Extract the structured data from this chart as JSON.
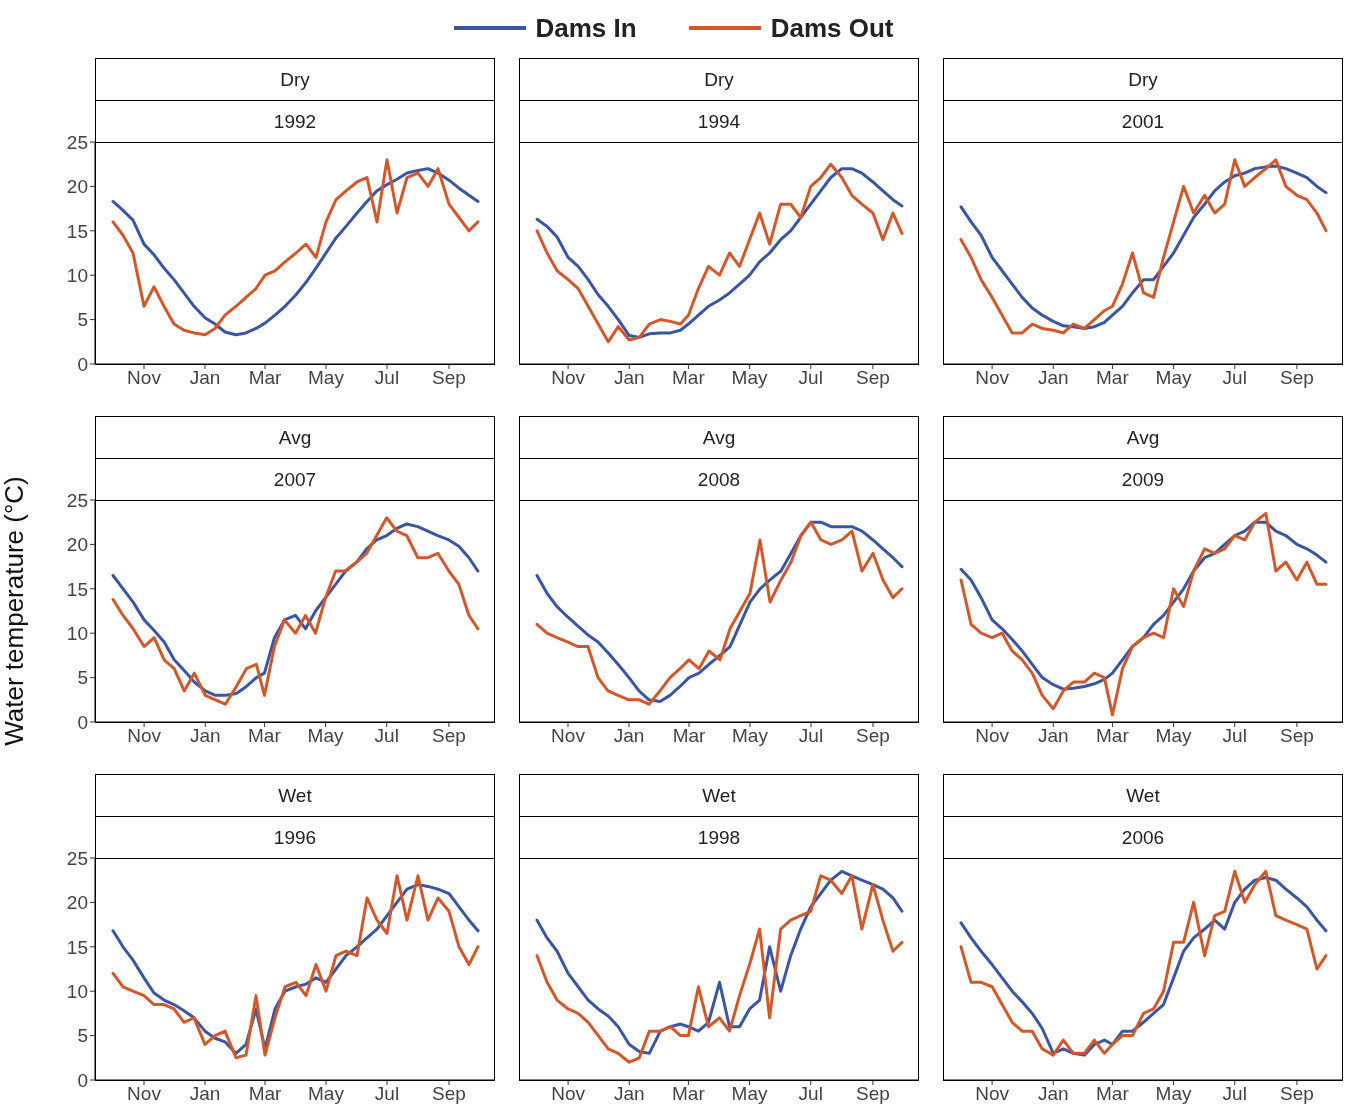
{
  "chart_data": [
    {
      "type": "line",
      "title": "Dry",
      "subtitle": "1992",
      "legend": "top",
      "x": [
        "1991-10-01",
        "1991-10-11",
        "1991-10-21",
        "1991-11-01",
        "1991-11-11",
        "1991-11-21",
        "1991-12-01",
        "1991-12-11",
        "1991-12-21",
        "1992-01-01",
        "1992-01-11",
        "1992-01-21",
        "1992-02-01",
        "1992-02-11",
        "1992-02-21",
        "1992-03-01",
        "1992-03-11",
        "1992-03-21",
        "1992-04-01",
        "1992-04-11",
        "1992-04-21",
        "1992-05-01",
        "1992-05-11",
        "1992-05-21",
        "1992-06-01",
        "1992-06-11",
        "1992-06-21",
        "1992-07-01",
        "1992-07-11",
        "1992-07-21",
        "1992-08-01",
        "1992-08-11",
        "1992-08-21",
        "1992-09-01",
        "1992-09-11",
        "1992-09-21",
        "1992-09-30"
      ],
      "xlim": [
        "1991-09-13",
        "1992-10-17"
      ],
      "xticks": [
        {
          "value": "1991-11-01",
          "label": "Nov"
        },
        {
          "value": "1992-01-01",
          "label": "Jan"
        },
        {
          "value": "1992-03-01",
          "label": "Mar"
        },
        {
          "value": "1992-05-01",
          "label": "May"
        },
        {
          "value": "1992-07-01",
          "label": "Jul"
        },
        {
          "value": "1992-09-01",
          "label": "Sep"
        }
      ],
      "ylim": [
        0,
        25
      ],
      "yticks": [
        0,
        5,
        10,
        15,
        20,
        25
      ],
      "series": [
        {
          "name": "Dams In",
          "color": "#3a55a4",
          "values": [
            18.3,
            17.3,
            16.2,
            13.5,
            12.3,
            10.8,
            9.5,
            8.0,
            6.5,
            5.2,
            4.5,
            3.6,
            3.3,
            3.5,
            4.0,
            4.6,
            5.5,
            6.5,
            7.8,
            9.2,
            10.8,
            12.5,
            14.2,
            15.5,
            17.0,
            18.3,
            19.5,
            20.2,
            20.8,
            21.5,
            21.8,
            22.0,
            21.5,
            20.7,
            19.8,
            19.0,
            18.3
          ]
        },
        {
          "name": "Dams Out",
          "color": "#d4572a",
          "values": [
            16,
            14.5,
            12.5,
            6.5,
            8.7,
            6.5,
            4.5,
            3.8,
            3.5,
            3.3,
            4.0,
            5.5,
            6.5,
            7.5,
            8.5,
            10,
            10.5,
            11.5,
            12.5,
            13.5,
            12.0,
            16.0,
            18.5,
            19.5,
            20.5,
            21.0,
            16.0,
            23.0,
            17.0,
            21.0,
            21.5,
            20.0,
            22.0,
            18.0,
            16.5,
            15.0,
            16.0
          ]
        }
      ]
    },
    {
      "type": "line",
      "title": "Dry",
      "subtitle": "1994",
      "tick_labels": "x",
      "x": [
        "1993-10-01",
        "1993-10-11",
        "1993-10-21",
        "1993-11-01",
        "1993-11-11",
        "1993-11-21",
        "1993-12-01",
        "1993-12-11",
        "1993-12-21",
        "1994-01-01",
        "1994-01-11",
        "1994-01-21",
        "1994-02-01",
        "1994-02-11",
        "1994-02-21",
        "1994-03-01",
        "1994-03-11",
        "1994-03-21",
        "1994-04-01",
        "1994-04-11",
        "1994-04-21",
        "1994-05-01",
        "1994-05-11",
        "1994-05-21",
        "1994-06-01",
        "1994-06-11",
        "1994-06-21",
        "1994-07-01",
        "1994-07-11",
        "1994-07-21",
        "1994-08-01",
        "1994-08-11",
        "1994-08-21",
        "1994-09-01",
        "1994-09-11",
        "1994-09-21",
        "1994-09-30"
      ],
      "xlim": [
        "1993-09-13",
        "1994-10-17"
      ],
      "xticks": [
        {
          "value": "1993-11-01",
          "label": "Nov"
        },
        {
          "value": "1994-01-01",
          "label": "Jan"
        },
        {
          "value": "1994-03-01",
          "label": "Mar"
        },
        {
          "value": "1994-05-01",
          "label": "May"
        },
        {
          "value": "1994-07-01",
          "label": "Jul"
        },
        {
          "value": "1994-09-01",
          "label": "Sep"
        }
      ],
      "ylim": [
        0,
        25
      ],
      "yticks": [
        0,
        5,
        10,
        15,
        20,
        25
      ],
      "series": [
        {
          "name": "Dams In",
          "color": "#3a55a4",
          "values": [
            16.3,
            15.5,
            14.3,
            12.0,
            11.0,
            9.5,
            7.8,
            6.5,
            5.0,
            3.2,
            3.0,
            3.4,
            3.5,
            3.5,
            3.8,
            4.5,
            5.5,
            6.5,
            7.2,
            8.0,
            9.0,
            10.0,
            11.5,
            12.5,
            14.0,
            15.0,
            16.5,
            18.0,
            19.5,
            21.0,
            22.0,
            22.0,
            21.5,
            20.5,
            19.5,
            18.5,
            17.8
          ]
        },
        {
          "name": "Dams Out",
          "color": "#d4572a",
          "values": [
            15,
            12.5,
            10.5,
            9.5,
            8.5,
            6.5,
            4.5,
            2.5,
            4.2,
            2.7,
            3.0,
            4.5,
            5.0,
            4.8,
            4.5,
            5.5,
            8.5,
            11.0,
            10.0,
            12.5,
            11.0,
            14.0,
            17.0,
            13.5,
            18.0,
            18.0,
            16.5,
            20.0,
            21.0,
            22.5,
            21.0,
            19.0,
            18.0,
            17.0,
            14.0,
            17.0,
            14.7
          ]
        }
      ]
    },
    {
      "type": "line",
      "title": "Dry",
      "subtitle": "2001",
      "tick_labels": "x",
      "x": [
        "2000-10-01",
        "2000-10-11",
        "2000-10-21",
        "2000-11-01",
        "2000-11-11",
        "2000-11-21",
        "2000-12-01",
        "2000-12-11",
        "2000-12-21",
        "2001-01-01",
        "2001-01-11",
        "2001-01-21",
        "2001-02-01",
        "2001-02-11",
        "2001-02-21",
        "2001-03-01",
        "2001-03-11",
        "2001-03-21",
        "2001-04-01",
        "2001-04-11",
        "2001-04-21",
        "2001-05-01",
        "2001-05-11",
        "2001-05-21",
        "2001-06-01",
        "2001-06-11",
        "2001-06-21",
        "2001-07-01",
        "2001-07-11",
        "2001-07-21",
        "2001-08-01",
        "2001-08-11",
        "2001-08-21",
        "2001-09-01",
        "2001-09-11",
        "2001-09-21",
        "2001-09-30"
      ],
      "xlim": [
        "2000-09-13",
        "2001-10-17"
      ],
      "xticks": [
        {
          "value": "2000-11-01",
          "label": "Nov"
        },
        {
          "value": "2001-01-01",
          "label": "Jan"
        },
        {
          "value": "2001-03-01",
          "label": "Mar"
        },
        {
          "value": "2001-05-01",
          "label": "May"
        },
        {
          "value": "2001-07-01",
          "label": "Jul"
        },
        {
          "value": "2001-09-01",
          "label": "Sep"
        }
      ],
      "ylim": [
        0,
        25
      ],
      "yticks": [
        0,
        5,
        10,
        15,
        20,
        25
      ],
      "series": [
        {
          "name": "Dams In",
          "color": "#3a55a4",
          "values": [
            17.7,
            16,
            14.5,
            12.0,
            10.5,
            9.0,
            7.5,
            6.3,
            5.5,
            4.8,
            4.3,
            4.2,
            4.0,
            4.2,
            4.7,
            5.5,
            6.5,
            8.0,
            9.5,
            9.5,
            11.0,
            12.5,
            14.5,
            16.5,
            18.0,
            19.5,
            20.5,
            21.2,
            21.5,
            22.0,
            22.2,
            22.3,
            22.0,
            21.5,
            21.0,
            20.0,
            19.3
          ]
        },
        {
          "name": "Dams Out",
          "color": "#d4572a",
          "values": [
            14.0,
            12.0,
            9.5,
            7.5,
            5.5,
            3.5,
            3.5,
            4.5,
            4.0,
            3.8,
            3.5,
            4.5,
            4.0,
            5.0,
            6.0,
            6.5,
            9.0,
            12.5,
            8.0,
            7.5,
            12.0,
            16.0,
            20.0,
            17.0,
            19.0,
            17.0,
            18.0,
            23.0,
            20.0,
            21.0,
            22.0,
            23.0,
            20.0,
            19.0,
            18.5,
            17.0,
            15.0
          ]
        }
      ]
    },
    {
      "type": "line",
      "title": "Avg",
      "subtitle": "2007",
      "ylabel": "Water temperature (°C)",
      "x": [
        "2006-10-01",
        "2006-10-11",
        "2006-10-21",
        "2006-11-01",
        "2006-11-11",
        "2006-11-21",
        "2006-12-01",
        "2006-12-11",
        "2006-12-21",
        "2007-01-01",
        "2007-01-11",
        "2007-01-21",
        "2007-02-01",
        "2007-02-11",
        "2007-02-21",
        "2007-03-01",
        "2007-03-11",
        "2007-03-21",
        "2007-04-01",
        "2007-04-11",
        "2007-04-21",
        "2007-05-01",
        "2007-05-11",
        "2007-05-21",
        "2007-06-01",
        "2007-06-11",
        "2007-06-21",
        "2007-07-01",
        "2007-07-11",
        "2007-07-21",
        "2007-08-01",
        "2007-08-11",
        "2007-08-21",
        "2007-09-01",
        "2007-09-11",
        "2007-09-21",
        "2007-09-30"
      ],
      "xlim": [
        "2006-09-13",
        "2007-10-17"
      ],
      "xticks": [
        {
          "value": "2006-11-01",
          "label": "Nov"
        },
        {
          "value": "2007-01-01",
          "label": "Jan"
        },
        {
          "value": "2007-03-01",
          "label": "Mar"
        },
        {
          "value": "2007-05-01",
          "label": "May"
        },
        {
          "value": "2007-07-01",
          "label": "Jul"
        },
        {
          "value": "2007-09-01",
          "label": "Sep"
        }
      ],
      "ylim": [
        0,
        25
      ],
      "yticks": [
        0,
        5,
        10,
        15,
        20,
        25
      ],
      "series": [
        {
          "name": "Dams In",
          "color": "#3a55a4",
          "values": [
            16.5,
            15,
            13.5,
            11.5,
            10.3,
            9.0,
            7.0,
            5.8,
            4.5,
            3.5,
            3.0,
            3.0,
            3.2,
            4.0,
            5.0,
            5.5,
            9.5,
            11.5,
            12.0,
            10.5,
            12.5,
            14.0,
            15.5,
            17.0,
            18.0,
            19.5,
            20.5,
            21.0,
            21.8,
            22.3,
            22.0,
            21.5,
            21.0,
            20.5,
            19.8,
            18.5,
            17.0
          ]
        },
        {
          "name": "Dams Out",
          "color": "#d4572a",
          "values": [
            13.8,
            12,
            10.5,
            8.5,
            9.5,
            7.0,
            6.0,
            3.5,
            5.5,
            3.0,
            2.5,
            2.0,
            4.0,
            6.0,
            6.5,
            3.0,
            8.5,
            11.5,
            10.0,
            12.0,
            10.0,
            14.0,
            17.0,
            17.0,
            18.0,
            19.0,
            21.0,
            23.0,
            21.5,
            21.0,
            18.5,
            18.5,
            19.0,
            17.0,
            15.5,
            12.0,
            10.5
          ]
        }
      ]
    },
    {
      "type": "line",
      "title": "Avg",
      "subtitle": "2008",
      "tick_labels": "x",
      "x": [
        "2007-10-01",
        "2007-10-11",
        "2007-10-21",
        "2007-11-01",
        "2007-11-11",
        "2007-11-21",
        "2007-12-01",
        "2007-12-11",
        "2007-12-21",
        "2008-01-01",
        "2008-01-11",
        "2008-01-21",
        "2008-02-01",
        "2008-02-11",
        "2008-02-21",
        "2008-03-01",
        "2008-03-11",
        "2008-03-21",
        "2008-04-01",
        "2008-04-11",
        "2008-04-21",
        "2008-05-01",
        "2008-05-11",
        "2008-05-21",
        "2008-06-01",
        "2008-06-11",
        "2008-06-21",
        "2008-07-01",
        "2008-07-11",
        "2008-07-21",
        "2008-08-01",
        "2008-08-11",
        "2008-08-21",
        "2008-09-01",
        "2008-09-11",
        "2008-09-21",
        "2008-09-30"
      ],
      "xlim": [
        "2007-09-13",
        "2008-10-17"
      ],
      "xticks": [
        {
          "value": "2007-11-01",
          "label": "Nov"
        },
        {
          "value": "2008-01-01",
          "label": "Jan"
        },
        {
          "value": "2008-03-01",
          "label": "Mar"
        },
        {
          "value": "2008-05-01",
          "label": "May"
        },
        {
          "value": "2008-07-01",
          "label": "Jul"
        },
        {
          "value": "2008-09-01",
          "label": "Sep"
        }
      ],
      "ylim": [
        0,
        25
      ],
      "yticks": [
        0,
        5,
        10,
        15,
        20,
        25
      ],
      "series": [
        {
          "name": "Dams In",
          "color": "#3a55a4",
          "values": [
            16.5,
            14.5,
            13.0,
            11.8,
            10.8,
            9.8,
            9.0,
            7.8,
            6.5,
            5.0,
            3.5,
            2.5,
            2.3,
            3.0,
            4.0,
            5.0,
            5.5,
            6.5,
            7.5,
            8.5,
            11.0,
            13.5,
            15.0,
            16.0,
            17.0,
            19.0,
            21.0,
            22.5,
            22.5,
            22.0,
            22.0,
            22.0,
            21.5,
            20.5,
            19.5,
            18.5,
            17.5
          ]
        },
        {
          "name": "Dams Out",
          "color": "#d4572a",
          "values": [
            11.0,
            10.0,
            9.5,
            9.0,
            8.5,
            8.5,
            5.0,
            3.5,
            3.0,
            2.5,
            2.5,
            2.0,
            3.5,
            5.0,
            6.0,
            7.0,
            6.0,
            8.0,
            7.0,
            10.5,
            12.5,
            14.5,
            20.5,
            13.5,
            16.0,
            18.0,
            21.0,
            22.5,
            20.5,
            20.0,
            20.5,
            21.5,
            17.0,
            19.0,
            16.0,
            14.0,
            15.0
          ]
        }
      ]
    },
    {
      "type": "line",
      "title": "Avg",
      "subtitle": "2009",
      "tick_labels": "x",
      "x": [
        "2008-10-01",
        "2008-10-11",
        "2008-10-21",
        "2008-11-01",
        "2008-11-11",
        "2008-11-21",
        "2008-12-01",
        "2008-12-11",
        "2008-12-21",
        "2009-01-01",
        "2009-01-11",
        "2009-01-21",
        "2009-02-01",
        "2009-02-11",
        "2009-02-21",
        "2009-03-01",
        "2009-03-11",
        "2009-03-21",
        "2009-04-01",
        "2009-04-11",
        "2009-04-21",
        "2009-05-01",
        "2009-05-11",
        "2009-05-21",
        "2009-06-01",
        "2009-06-11",
        "2009-06-21",
        "2009-07-01",
        "2009-07-11",
        "2009-07-21",
        "2009-08-01",
        "2009-08-11",
        "2009-08-21",
        "2009-09-01",
        "2009-09-11",
        "2009-09-21",
        "2009-09-30"
      ],
      "xlim": [
        "2008-09-13",
        "2009-10-17"
      ],
      "xticks": [
        {
          "value": "2008-11-01",
          "label": "Nov"
        },
        {
          "value": "2009-01-01",
          "label": "Jan"
        },
        {
          "value": "2009-03-01",
          "label": "Mar"
        },
        {
          "value": "2009-05-01",
          "label": "May"
        },
        {
          "value": "2009-07-01",
          "label": "Jul"
        },
        {
          "value": "2009-09-01",
          "label": "Sep"
        }
      ],
      "ylim": [
        0,
        25
      ],
      "yticks": [
        0,
        5,
        10,
        15,
        20,
        25
      ],
      "series": [
        {
          "name": "Dams In",
          "color": "#3a55a4",
          "values": [
            17.2,
            16.0,
            14.0,
            11.5,
            10.5,
            9.3,
            8.0,
            6.5,
            5.0,
            4.2,
            3.7,
            3.8,
            4.0,
            4.3,
            4.8,
            5.5,
            7.0,
            8.5,
            9.5,
            11.0,
            12.0,
            13.5,
            15.0,
            17.0,
            18.5,
            19.0,
            20.0,
            21.0,
            21.5,
            22.5,
            22.5,
            21.5,
            21.0,
            20.0,
            19.5,
            18.8,
            18.0
          ]
        },
        {
          "name": "Dams Out",
          "color": "#d4572a",
          "values": [
            16.0,
            11.0,
            10.0,
            9.5,
            10.0,
            8.0,
            7.0,
            5.5,
            3.0,
            1.5,
            3.5,
            4.5,
            4.5,
            5.5,
            5.0,
            0.8,
            6.0,
            8.5,
            9.5,
            10.0,
            9.5,
            15.0,
            13.0,
            17.0,
            19.5,
            19.0,
            19.5,
            21.0,
            20.5,
            22.5,
            23.5,
            17.0,
            18.0,
            16.0,
            18.0,
            15.5,
            15.5
          ]
        }
      ]
    },
    {
      "type": "line",
      "title": "Wet",
      "subtitle": "1996",
      "x": [
        "1995-10-01",
        "1995-10-11",
        "1995-10-21",
        "1995-11-01",
        "1995-11-11",
        "1995-11-21",
        "1995-12-01",
        "1995-12-11",
        "1995-12-21",
        "1996-01-01",
        "1996-01-11",
        "1996-01-21",
        "1996-02-01",
        "1996-02-11",
        "1996-02-21",
        "1996-03-01",
        "1996-03-11",
        "1996-03-21",
        "1996-04-01",
        "1996-04-11",
        "1996-04-21",
        "1996-05-01",
        "1996-05-11",
        "1996-05-21",
        "1996-06-01",
        "1996-06-11",
        "1996-06-21",
        "1996-07-01",
        "1996-07-11",
        "1996-07-21",
        "1996-08-01",
        "1996-08-11",
        "1996-08-21",
        "1996-09-01",
        "1996-09-11",
        "1996-09-21",
        "1996-09-30"
      ],
      "xlim": [
        "1995-09-13",
        "1996-10-17"
      ],
      "xticks": [
        {
          "value": "1995-11-01",
          "label": "Nov"
        },
        {
          "value": "1996-01-01",
          "label": "Jan"
        },
        {
          "value": "1996-03-01",
          "label": "Mar"
        },
        {
          "value": "1996-05-01",
          "label": "May"
        },
        {
          "value": "1996-07-01",
          "label": "Jul"
        },
        {
          "value": "1996-09-01",
          "label": "Sep"
        }
      ],
      "ylim": [
        0,
        25
      ],
      "yticks": [
        0,
        5,
        10,
        15,
        20,
        25
      ],
      "series": [
        {
          "name": "Dams In",
          "color": "#3a55a4",
          "values": [
            16.8,
            15.0,
            13.5,
            11.5,
            9.8,
            9.0,
            8.5,
            7.8,
            7.0,
            5.5,
            4.7,
            4.3,
            3.0,
            4.0,
            8.0,
            3.5,
            8.0,
            10.0,
            10.5,
            10.8,
            11.5,
            11.0,
            12.5,
            14.0,
            15.0,
            16.0,
            17.0,
            18.5,
            20.0,
            21.5,
            22.0,
            21.8,
            21.5,
            21.0,
            19.5,
            18.0,
            16.8
          ]
        },
        {
          "name": "Dams Out",
          "color": "#d4572a",
          "values": [
            12.0,
            10.5,
            10.0,
            9.5,
            8.5,
            8.5,
            8.0,
            6.5,
            7.0,
            4.0,
            5.0,
            5.5,
            2.5,
            2.8,
            9.5,
            2.8,
            7.0,
            10.5,
            11.0,
            9.5,
            13.0,
            10.0,
            14.0,
            14.5,
            14.0,
            20.5,
            18.0,
            16.5,
            23.0,
            18.0,
            23.0,
            18.0,
            20.5,
            19.0,
            15.0,
            13.0,
            15.0
          ]
        }
      ]
    },
    {
      "type": "line",
      "title": "Wet",
      "subtitle": "1998",
      "tick_labels": "x",
      "x": [
        "1997-10-01",
        "1997-10-11",
        "1997-10-21",
        "1997-11-01",
        "1997-11-11",
        "1997-11-21",
        "1997-12-01",
        "1997-12-11",
        "1997-12-21",
        "1998-01-01",
        "1998-01-11",
        "1998-01-21",
        "1998-02-01",
        "1998-02-11",
        "1998-02-21",
        "1998-03-01",
        "1998-03-11",
        "1998-03-21",
        "1998-04-01",
        "1998-04-11",
        "1998-04-21",
        "1998-05-01",
        "1998-05-11",
        "1998-05-21",
        "1998-06-01",
        "1998-06-11",
        "1998-06-21",
        "1998-07-01",
        "1998-07-11",
        "1998-07-21",
        "1998-08-01",
        "1998-08-11",
        "1998-08-21",
        "1998-09-01",
        "1998-09-11",
        "1998-09-21",
        "1998-09-30"
      ],
      "xlim": [
        "1997-09-13",
        "1998-10-17"
      ],
      "xticks": [
        {
          "value": "1997-11-01",
          "label": "Nov"
        },
        {
          "value": "1998-01-01",
          "label": "Jan"
        },
        {
          "value": "1998-03-01",
          "label": "Mar"
        },
        {
          "value": "1998-05-01",
          "label": "May"
        },
        {
          "value": "1998-07-01",
          "label": "Jul"
        },
        {
          "value": "1998-09-01",
          "label": "Sep"
        }
      ],
      "ylim": [
        0,
        25
      ],
      "yticks": [
        0,
        5,
        10,
        15,
        20,
        25
      ],
      "series": [
        {
          "name": "Dams In",
          "color": "#3a55a4",
          "values": [
            18.0,
            16.0,
            14.5,
            12.0,
            10.5,
            9.0,
            8.0,
            7.2,
            6.0,
            4.0,
            3.2,
            3.0,
            5.5,
            6.0,
            6.3,
            6.0,
            5.5,
            6.5,
            11.0,
            6.0,
            6.0,
            8.0,
            9.0,
            15.0,
            10.0,
            14.0,
            17.0,
            19.5,
            21.0,
            22.5,
            23.5,
            23.0,
            22.5,
            22.0,
            21.5,
            20.5,
            19.0
          ]
        },
        {
          "name": "Dams Out",
          "color": "#d4572a",
          "values": [
            14.0,
            11.0,
            9.0,
            8.0,
            7.5,
            6.5,
            5.0,
            3.5,
            3.0,
            2.0,
            2.5,
            5.5,
            5.5,
            6.0,
            5.0,
            5.0,
            10.5,
            6.0,
            7.0,
            5.5,
            9.5,
            13.0,
            17.0,
            7.0,
            17.0,
            18.0,
            18.5,
            19.0,
            23.0,
            22.5,
            21.0,
            23.0,
            17.0,
            22.0,
            18.0,
            14.5,
            15.5
          ]
        }
      ]
    },
    {
      "type": "line",
      "title": "Wet",
      "subtitle": "2006",
      "tick_labels": "x",
      "x": [
        "2005-10-01",
        "2005-10-11",
        "2005-10-21",
        "2005-11-01",
        "2005-11-11",
        "2005-11-21",
        "2005-12-01",
        "2005-12-11",
        "2005-12-21",
        "2006-01-01",
        "2006-01-11",
        "2006-01-21",
        "2006-02-01",
        "2006-02-11",
        "2006-02-21",
        "2006-03-01",
        "2006-03-11",
        "2006-03-21",
        "2006-04-01",
        "2006-04-11",
        "2006-04-21",
        "2006-05-01",
        "2006-05-11",
        "2006-05-21",
        "2006-06-01",
        "2006-06-11",
        "2006-06-21",
        "2006-07-01",
        "2006-07-11",
        "2006-07-21",
        "2006-08-01",
        "2006-08-11",
        "2006-08-21",
        "2006-09-01",
        "2006-09-11",
        "2006-09-21",
        "2006-09-30"
      ],
      "xlim": [
        "2005-09-13",
        "2006-10-17"
      ],
      "xticks": [
        {
          "value": "2005-11-01",
          "label": "Nov"
        },
        {
          "value": "2006-01-01",
          "label": "Jan"
        },
        {
          "value": "2006-03-01",
          "label": "Mar"
        },
        {
          "value": "2006-05-01",
          "label": "May"
        },
        {
          "value": "2006-07-01",
          "label": "Jul"
        },
        {
          "value": "2006-09-01",
          "label": "Sep"
        }
      ],
      "ylim": [
        0,
        25
      ],
      "yticks": [
        0,
        5,
        10,
        15,
        20,
        25
      ],
      "series": [
        {
          "name": "Dams In",
          "color": "#3a55a4",
          "values": [
            17.7,
            16.0,
            14.5,
            13.0,
            11.5,
            10.0,
            8.8,
            7.5,
            5.8,
            3.0,
            3.5,
            3.0,
            2.8,
            4.0,
            4.5,
            4.0,
            5.5,
            5.5,
            6.5,
            7.5,
            8.5,
            11.5,
            14.5,
            16.0,
            17.0,
            18.0,
            17.0,
            20.0,
            21.5,
            22.5,
            22.8,
            22.5,
            21.5,
            20.5,
            19.5,
            18.0,
            16.8
          ]
        },
        {
          "name": "Dams Out",
          "color": "#d4572a",
          "values": [
            15.0,
            11.0,
            11.0,
            10.5,
            8.5,
            6.5,
            5.5,
            5.5,
            3.5,
            2.8,
            4.5,
            3.0,
            3.0,
            4.5,
            3.0,
            4.0,
            5.0,
            5.0,
            7.5,
            8.0,
            10.0,
            15.5,
            15.5,
            20.0,
            14.0,
            18.5,
            19.0,
            23.5,
            20.0,
            22.0,
            23.5,
            18.5,
            18.0,
            17.5,
            17.0,
            12.5,
            14.0
          ]
        }
      ]
    }
  ]
}
